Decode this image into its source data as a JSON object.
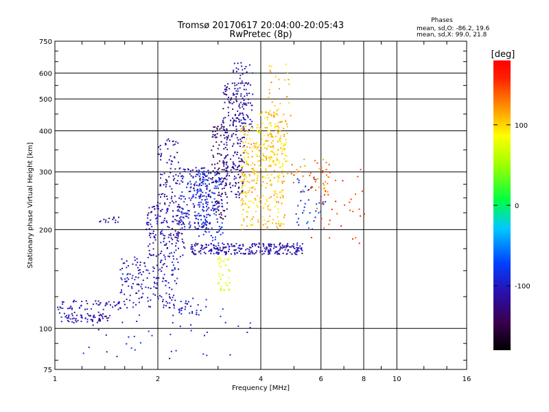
{
  "chart_data": {
    "type": "scatter",
    "title": "Tromsø 20170617 20:04:00-20:05:43",
    "subtitle": "RwPretec (8p)",
    "xlabel": "Frequency [MHz]",
    "ylabel": "Stationary phase Virtual Height [km]",
    "x_scale": "log",
    "y_scale": "log",
    "xlim": [
      1,
      16
    ],
    "ylim": [
      75,
      750
    ],
    "x_ticks": [
      1,
      2,
      4,
      6,
      8,
      10,
      16
    ],
    "x_tick_labels": [
      "1",
      "2",
      "4",
      "6",
      "8",
      "10",
      "16"
    ],
    "y_ticks": [
      75,
      100,
      200,
      300,
      400,
      500,
      600,
      750
    ],
    "y_tick_labels": [
      "75",
      "100",
      "200",
      "300",
      "400",
      "500",
      "600",
      "750"
    ],
    "grid": true,
    "phase_box": {
      "title": "Phases",
      "line_o": "mean, sd,O: -86.2, 19.6",
      "line_x": "mean, sd,X:  99.0, 21.8"
    },
    "colorbar": {
      "label": "[deg]",
      "ticks": [
        "100",
        "0",
        "-100"
      ],
      "tick_values": [
        100,
        0,
        -100
      ],
      "range": [
        -180,
        180
      ]
    },
    "point_groups": [
      {
        "x_range": [
          1.0,
          1.45
        ],
        "y_range": [
          104,
          112
        ],
        "phase": -110,
        "count": 70
      },
      {
        "x_range": [
          1.0,
          1.55
        ],
        "y_range": [
          114,
          122
        ],
        "phase": -105,
        "count": 55
      },
      {
        "x_range": [
          1.35,
          1.55
        ],
        "y_range": [
          210,
          220
        ],
        "phase": -115,
        "count": 14
      },
      {
        "x_range": [
          1.55,
          2.3
        ],
        "y_range": [
          115,
          165
        ],
        "phase": -105,
        "count": 170
      },
      {
        "x_range": [
          1.85,
          2.4
        ],
        "y_range": [
          165,
          240
        ],
        "phase": -110,
        "count": 170
      },
      {
        "x_range": [
          2.0,
          2.3
        ],
        "y_range": [
          240,
          380
        ],
        "phase": -112,
        "count": 80
      },
      {
        "x_range": [
          2.3,
          2.85
        ],
        "y_range": [
          200,
          310
        ],
        "phase": -100,
        "count": 200
      },
      {
        "x_range": [
          2.6,
          3.1
        ],
        "y_range": [
          185,
          300
        ],
        "phase": -85,
        "count": 130
      },
      {
        "x_range": [
          2.85,
          3.2
        ],
        "y_range": [
          215,
          420
        ],
        "phase": -135,
        "count": 110
      },
      {
        "x_range": [
          3.1,
          3.6
        ],
        "y_range": [
          250,
          560
        ],
        "phase": -120,
        "count": 200
      },
      {
        "x_range": [
          3.3,
          3.8
        ],
        "y_range": [
          400,
          650
        ],
        "phase": -108,
        "count": 90
      },
      {
        "x_range": [
          2.5,
          5.3
        ],
        "y_range": [
          168,
          182
        ],
        "phase": -110,
        "count": 260
      },
      {
        "x_range": [
          3.5,
          4.7
        ],
        "y_range": [
          200,
          420
        ],
        "phase": 105,
        "count": 300
      },
      {
        "x_range": [
          3.9,
          4.8
        ],
        "y_range": [
          310,
          460
        ],
        "phase": 100,
        "count": 100
      },
      {
        "x_range": [
          4.2,
          4.9
        ],
        "y_range": [
          420,
          640
        ],
        "phase": 112,
        "count": 30
      },
      {
        "x_range": [
          3.0,
          3.25
        ],
        "y_range": [
          130,
          165
        ],
        "phase": 75,
        "count": 35
      },
      {
        "x_range": [
          4.7,
          6.4
        ],
        "y_range": [
          260,
          330
        ],
        "phase": 130,
        "count": 45
      },
      {
        "x_range": [
          5.0,
          6.2
        ],
        "y_range": [
          200,
          290
        ],
        "phase": -80,
        "count": 40
      },
      {
        "x_range": [
          5.5,
          8.1
        ],
        "y_range": [
          180,
          310
        ],
        "phase": 150,
        "count": 40
      },
      {
        "x_range": [
          1.1,
          3.8
        ],
        "y_range": [
          80,
          115
        ],
        "phase": -95,
        "count": 40
      },
      {
        "x_range": [
          2.3,
          2.8
        ],
        "y_range": [
          110,
          125
        ],
        "phase": -95,
        "count": 30
      }
    ]
  }
}
